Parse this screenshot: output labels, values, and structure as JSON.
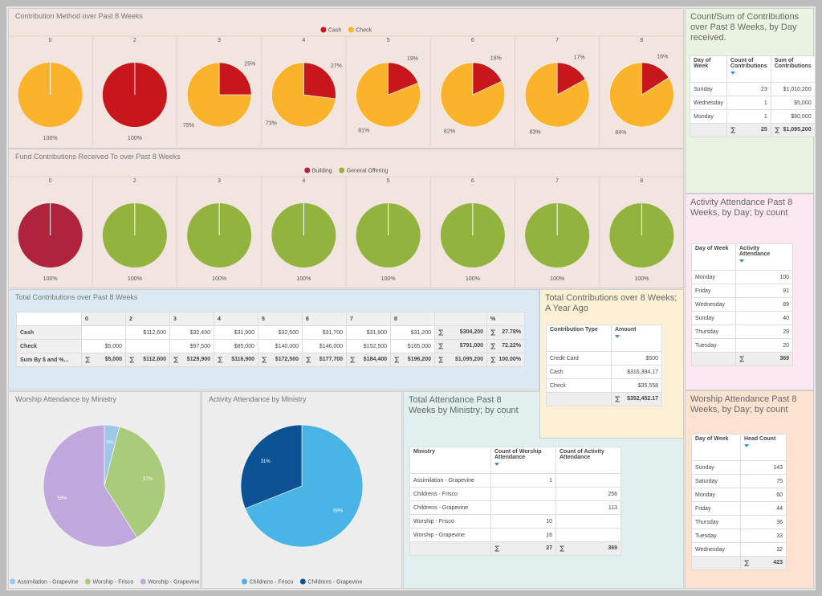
{
  "method": {
    "title": "Contribution Method over Past 8 Weeks",
    "series": [
      {
        "name": "Cash",
        "color": "#c8161d"
      },
      {
        "name": "Check",
        "color": "#fbb32b"
      }
    ],
    "pies": [
      {
        "label": "0",
        "values": [
          0,
          100
        ],
        "value_labels": [
          null,
          "100%"
        ]
      },
      {
        "label": "2",
        "values": [
          100,
          0
        ],
        "value_labels": [
          "100%",
          null
        ]
      },
      {
        "label": "3",
        "values": [
          25,
          75
        ],
        "value_labels": [
          "25%",
          "75%"
        ]
      },
      {
        "label": "4",
        "values": [
          27,
          73
        ],
        "value_labels": [
          "27%",
          "73%"
        ]
      },
      {
        "label": "5",
        "values": [
          19,
          81
        ],
        "value_labels": [
          "19%",
          "81%"
        ]
      },
      {
        "label": "6",
        "values": [
          18,
          82
        ],
        "value_labels": [
          "18%",
          "82%"
        ]
      },
      {
        "label": "7",
        "values": [
          17,
          83
        ],
        "value_labels": [
          "17%",
          "83%"
        ]
      },
      {
        "label": "8",
        "values": [
          16,
          84
        ],
        "value_labels": [
          "16%",
          "84%"
        ]
      }
    ]
  },
  "fund": {
    "title": "Fund Contributions Received To over Past 8 Weeks",
    "series": [
      {
        "name": "Building",
        "color": "#b0233c"
      },
      {
        "name": "General Offering",
        "color": "#92b43e"
      }
    ],
    "pies": [
      {
        "label": "0",
        "values": [
          100,
          0
        ],
        "value_labels": [
          "100%",
          null
        ]
      },
      {
        "label": "2",
        "values": [
          0,
          100
        ],
        "value_labels": [
          null,
          "100%"
        ]
      },
      {
        "label": "3",
        "values": [
          0,
          100
        ],
        "value_labels": [
          null,
          "100%"
        ]
      },
      {
        "label": "4",
        "values": [
          0,
          100
        ],
        "value_labels": [
          null,
          "100%"
        ]
      },
      {
        "label": "5",
        "values": [
          0,
          100
        ],
        "value_labels": [
          null,
          "100%"
        ]
      },
      {
        "label": "6",
        "values": [
          0,
          100
        ],
        "value_labels": [
          null,
          "100%"
        ]
      },
      {
        "label": "7",
        "values": [
          0,
          100
        ],
        "value_labels": [
          null,
          "100%"
        ]
      },
      {
        "label": "8",
        "values": [
          0,
          100
        ],
        "value_labels": [
          null,
          "100%"
        ]
      }
    ]
  },
  "count_sum": {
    "title": "Count/Sum of Contributions over Past 8 Weeks, by Day received.",
    "columns": [
      "Day of Week",
      "Count of Contributions",
      "Sum of Contributions"
    ],
    "rows": [
      [
        "Sunday",
        "23",
        "$1,010,200"
      ],
      [
        "Wednesday",
        "1",
        "$5,000"
      ],
      [
        "Monday",
        "1",
        "$80,000"
      ]
    ],
    "total": [
      "25",
      "$1,095,200"
    ]
  },
  "activity_day": {
    "title": "Activity Attendance Past 8 Weeks, by Day; by count",
    "columns": [
      "Day of Week",
      "Activity Attendance"
    ],
    "rows": [
      [
        "Monday",
        "100"
      ],
      [
        "Friday",
        "91"
      ],
      [
        "Wednesday",
        "89"
      ],
      [
        "Sunday",
        "40"
      ],
      [
        "Thursday",
        "29"
      ],
      [
        "Tuesday",
        "20"
      ]
    ],
    "total": [
      "369"
    ]
  },
  "worship_day": {
    "title": "Worship Attendance Past 8 Weeks, by Day; by count",
    "columns": [
      "Day of Week",
      "Head Count"
    ],
    "rows": [
      [
        "Sunday",
        "143"
      ],
      [
        "Saturday",
        "75"
      ],
      [
        "Monday",
        "60"
      ],
      [
        "Friday",
        "44"
      ],
      [
        "Thursday",
        "36"
      ],
      [
        "Tuesday",
        "33"
      ],
      [
        "Wednesday",
        "32"
      ]
    ],
    "total": [
      "423"
    ]
  },
  "year_ago": {
    "title": "Total Contributions over 8 Weeks; A Year Ago",
    "columns": [
      "Contribution Type",
      "Amount"
    ],
    "rows": [
      [
        "Credit Card",
        "$500"
      ],
      [
        "Cash",
        "$316,394.17"
      ],
      [
        "Check",
        "$35,558"
      ]
    ],
    "total": [
      "$352,452.17"
    ]
  },
  "ministry_table": {
    "title": "Total Attendance Past 8 Weeks by Ministry; by count",
    "columns": [
      "Ministry",
      "Count of Worship Attendance",
      "Count of Activity Attendance"
    ],
    "rows": [
      [
        "Assimilation - Grapevine",
        "1",
        null
      ],
      [
        "Childrens - Frisco",
        null,
        "256"
      ],
      [
        "Childrens - Grapevine",
        null,
        "113"
      ],
      [
        "Worship - Frisco",
        "10",
        null
      ],
      [
        "Worship - Grapevine",
        "16",
        null
      ]
    ],
    "total": [
      "27",
      "369"
    ]
  },
  "totals": {
    "title": "Total Contributions over Past 8 Weeks",
    "weeks": [
      "0",
      "2",
      "3",
      "4",
      "5",
      "6",
      "7",
      "8"
    ],
    "pct_header": "%",
    "rows": [
      {
        "label": "Cash",
        "weeks": [
          null,
          "$112,600",
          "$32,400",
          "$31,900",
          "$32,500",
          "$31,700",
          "$31,900",
          "$31,200"
        ],
        "total": "$304,200",
        "pct": "27.78%"
      },
      {
        "label": "Check",
        "weeks": [
          "$5,000",
          null,
          "$97,500",
          "$85,000",
          "$140,000",
          "$146,000",
          "$152,500",
          "$165,000"
        ],
        "total": "$791,000",
        "pct": "72.22%"
      },
      {
        "label": "Sum By $ and %...",
        "weeks": [
          "$5,000",
          "$112,600",
          "$129,900",
          "$116,900",
          "$172,500",
          "$177,700",
          "$184,400",
          "$196,200"
        ],
        "total": "$1,095,200",
        "pct": "100.00%"
      }
    ]
  },
  "worship_ministry": {
    "title": "Worship Attendance by Ministry",
    "series": [
      {
        "name": "Assimilation - Grapevine",
        "color": "#9ec8ea",
        "value": 4,
        "value_label": "4%"
      },
      {
        "name": "Worship - Frisco",
        "color": "#a9cc7c",
        "value": 37,
        "value_label": "37%"
      },
      {
        "name": "Worship - Grapevine",
        "color": "#c0a8dc",
        "value": 59,
        "value_label": "59%"
      }
    ]
  },
  "activity_ministry": {
    "title": "Activity Attendance by Ministry",
    "series": [
      {
        "name": "Childrens - Frisco",
        "color": "#4ab4e6",
        "value": 69,
        "value_label": "69%"
      },
      {
        "name": "Childrens - Grapevine",
        "color": "#0b5394",
        "value": 31,
        "value_label": "31%"
      }
    ]
  }
}
